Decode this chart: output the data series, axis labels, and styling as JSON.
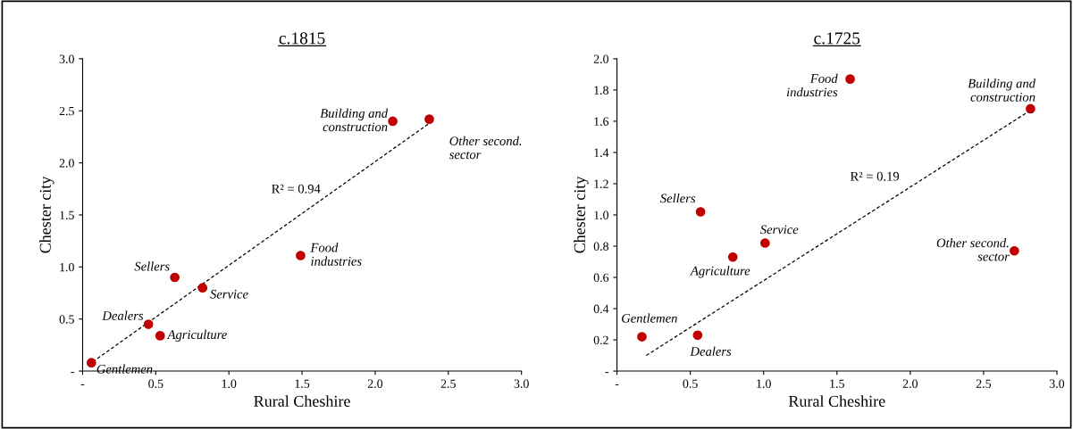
{
  "chart_data": [
    {
      "type": "scatter",
      "title": "c.1815",
      "xlabel": "Rural Cheshire",
      "ylabel": "Chester city",
      "grid": false,
      "legend": false,
      "xlim": [
        0,
        3
      ],
      "ylim": [
        0,
        3
      ],
      "xticks": [
        {
          "value": 0,
          "label": "-"
        },
        {
          "value": 0.5,
          "label": "0.5"
        },
        {
          "value": 1,
          "label": "1.0"
        },
        {
          "value": 1.5,
          "label": "1.5"
        },
        {
          "value": 2,
          "label": "2.0"
        },
        {
          "value": 2.5,
          "label": "2.5"
        },
        {
          "value": 3,
          "label": "3.0"
        }
      ],
      "yticks": [
        {
          "value": 0,
          "label": "-"
        },
        {
          "value": 0.5,
          "label": "0.5"
        },
        {
          "value": 1,
          "label": "1.0"
        },
        {
          "value": 1.5,
          "label": "1.5"
        },
        {
          "value": 2,
          "label": "2.0"
        },
        {
          "value": 2.5,
          "label": "2.5"
        },
        {
          "value": 3,
          "label": "3.0"
        }
      ],
      "series": [
        {
          "color": "#c00000",
          "marker": "circle",
          "x": [
            0.06,
            0.45,
            0.53,
            0.63,
            0.82,
            1.49,
            2.12,
            2.37
          ],
          "values": [
            0.08,
            0.45,
            0.34,
            0.9,
            0.8,
            1.11,
            2.4,
            2.42
          ]
        },
        {
          "type": "line",
          "color": "#000000",
          "line_style": "dashed",
          "marker": "none",
          "x": [
            0.07,
            2.39
          ],
          "values": [
            0.09,
            2.4
          ]
        }
      ],
      "annotations": [
        {
          "text": "Gentlemen",
          "x": 0.06,
          "y": 0.08
        },
        {
          "text": "Dealers",
          "x": 0.45,
          "y": 0.45
        },
        {
          "text": "Agriculture",
          "x": 0.53,
          "y": 0.34
        },
        {
          "text": "Sellers",
          "x": 0.63,
          "y": 0.9
        },
        {
          "text": "Service",
          "x": 0.82,
          "y": 0.8
        },
        {
          "text": "Food\nindustries",
          "x": 1.49,
          "y": 1.11
        },
        {
          "text": "Building and\nconstruction",
          "x": 2.12,
          "y": 2.4
        },
        {
          "text": "Other second.\nsector",
          "x": 2.37,
          "y": 2.42
        },
        "R² = 0.94"
      ]
    },
    {
      "type": "scatter",
      "title": "c.1725",
      "xlabel": "Rural Cheshire",
      "ylabel": "Chester city",
      "grid": false,
      "legend": false,
      "xlim": [
        0,
        3
      ],
      "ylim": [
        0,
        2
      ],
      "xticks": [
        {
          "value": 0,
          "label": "-"
        },
        {
          "value": 0.5,
          "label": "0.5"
        },
        {
          "value": 1,
          "label": "1.0"
        },
        {
          "value": 1.5,
          "label": "1.5"
        },
        {
          "value": 2,
          "label": "2.0"
        },
        {
          "value": 2.5,
          "label": "2.5"
        },
        {
          "value": 3,
          "label": "3.0"
        }
      ],
      "yticks": [
        {
          "value": 0,
          "label": "-"
        },
        {
          "value": 0.2,
          "label": "0.2"
        },
        {
          "value": 0.4,
          "label": "0.4"
        },
        {
          "value": 0.6,
          "label": "0.6"
        },
        {
          "value": 0.8,
          "label": "0.8"
        },
        {
          "value": 1,
          "label": "1.0"
        },
        {
          "value": 1.2,
          "label": "1.2"
        },
        {
          "value": 1.4,
          "label": "1.4"
        },
        {
          "value": 1.6,
          "label": "1.6"
        },
        {
          "value": 1.8,
          "label": "1.8"
        },
        {
          "value": 2,
          "label": "2.0"
        }
      ],
      "series": [
        {
          "color": "#c00000",
          "marker": "circle",
          "x": [
            0.17,
            0.55,
            0.57,
            0.79,
            1.01,
            1.59,
            2.82,
            2.71
          ],
          "values": [
            0.22,
            0.23,
            1.02,
            0.73,
            0.82,
            1.87,
            1.68,
            0.77
          ]
        },
        {
          "type": "line",
          "color": "#000000",
          "line_style": "dashed",
          "marker": "none",
          "x": [
            0.2,
            2.82
          ],
          "values": [
            0.1,
            1.67
          ]
        }
      ],
      "annotations": [
        {
          "text": "Gentlemen",
          "x": 0.17,
          "y": 0.22
        },
        {
          "text": "Dealers",
          "x": 0.55,
          "y": 0.23
        },
        {
          "text": "Sellers",
          "x": 0.57,
          "y": 1.02
        },
        {
          "text": "Agriculture",
          "x": 0.79,
          "y": 0.73
        },
        {
          "text": "Service",
          "x": 1.01,
          "y": 0.82
        },
        {
          "text": "Food\nindustries",
          "x": 1.59,
          "y": 1.87
        },
        {
          "text": "Building and\nconstruction",
          "x": 2.82,
          "y": 1.68
        },
        {
          "text": "Other second.\nsector",
          "x": 2.71,
          "y": 0.77
        },
        "R² = 0.19"
      ]
    }
  ]
}
